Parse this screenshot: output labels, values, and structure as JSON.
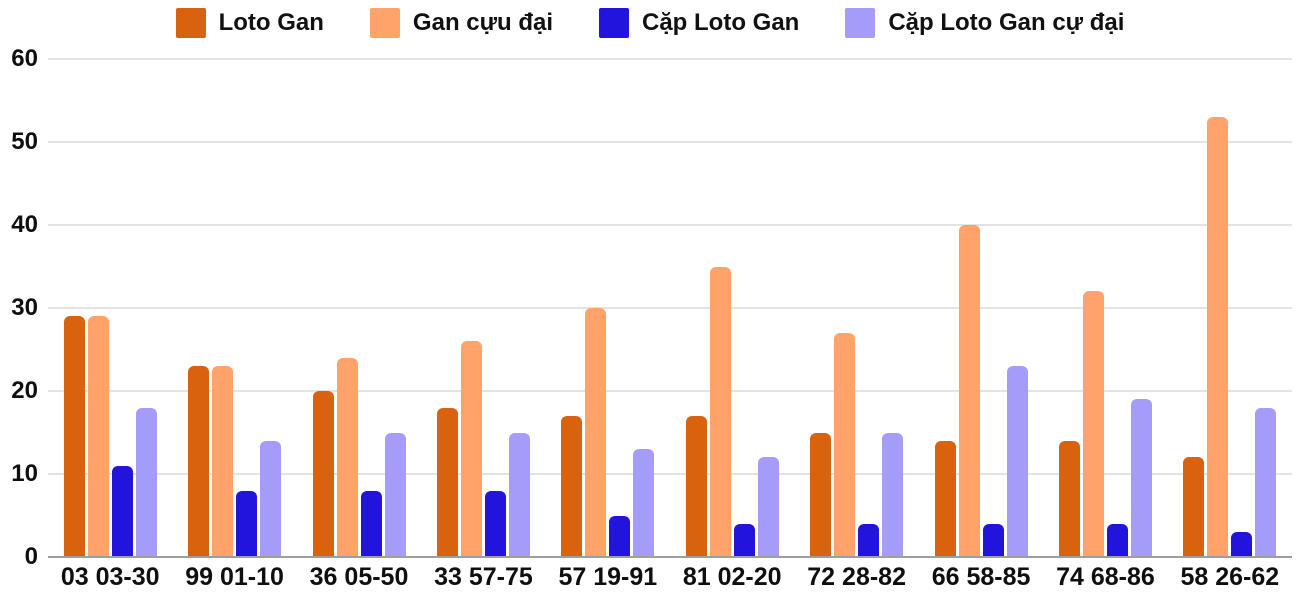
{
  "colors": {
    "background": "#ffffff",
    "grid": "#e3e3e3",
    "axis_line": "#9e9e9e",
    "text": "#0f0f0f"
  },
  "chart_data": {
    "type": "bar",
    "title": "",
    "xlabel": "",
    "ylabel": "",
    "ylim": [
      0,
      60
    ],
    "yticks": [
      0,
      10,
      20,
      30,
      40,
      50,
      60
    ],
    "grid": true,
    "legend_position": "top",
    "categories": [
      "03 03-30",
      "99 01-10",
      "36 05-50",
      "33 57-75",
      "57 19-91",
      "81 02-20",
      "72 28-82",
      "66 58-85",
      "74 68-86",
      "58 26-62"
    ],
    "series": [
      {
        "name": "Loto Gan",
        "color": "#d9620f",
        "values": [
          29,
          23,
          20,
          18,
          17,
          17,
          15,
          14,
          14,
          12
        ]
      },
      {
        "name": "Gan cựu đại",
        "color": "#ffa36b",
        "values": [
          29,
          23,
          24,
          26,
          30,
          35,
          27,
          40,
          32,
          53
        ]
      },
      {
        "name": "Cặp Loto Gan",
        "color": "#2213dd",
        "values": [
          11,
          8,
          8,
          8,
          5,
          4,
          4,
          4,
          4,
          3
        ]
      },
      {
        "name": "Cặp Loto Gan cự đại",
        "color": "#a49cf8",
        "values": [
          18,
          14,
          15,
          15,
          13,
          12,
          15,
          23,
          19,
          18
        ]
      }
    ]
  }
}
